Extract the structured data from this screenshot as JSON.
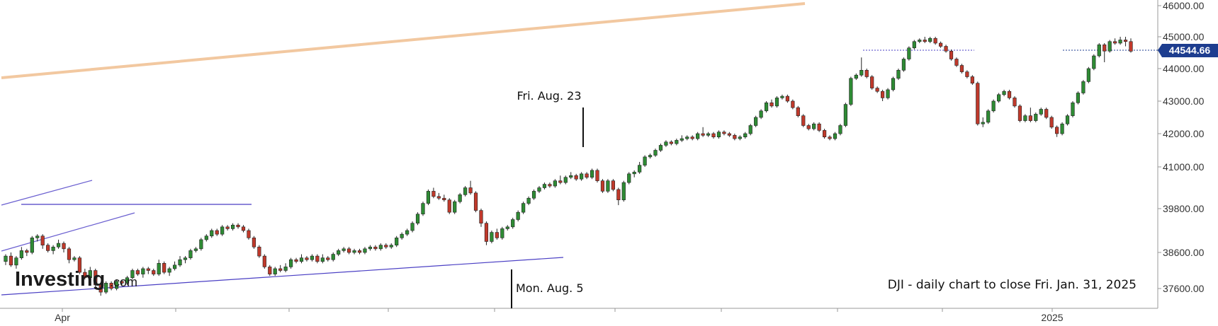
{
  "chart_data": {
    "type": "candlestick",
    "symbol": "DJI",
    "caption": "DJI - daily chart to close Fri. Jan. 31, 2025",
    "y_ticks": [
      "46000.00",
      "45000.00",
      "44000.00",
      "43000.00",
      "42000.00",
      "41000.00",
      "39800.00",
      "38600.00",
      "37600.00"
    ],
    "last_price": "44544.66",
    "x_labels": [
      "Apr",
      "2025"
    ],
    "annotations": [
      {
        "label": "Fri. Aug. 23"
      },
      {
        "label": "Mon. Aug. 5"
      }
    ],
    "candles": [
      [
        38350,
        38500,
        38250,
        38550
      ],
      [
        38500,
        38250,
        38200,
        38600
      ],
      [
        38250,
        38450,
        38150,
        38500
      ],
      [
        38450,
        38650,
        38400,
        38750
      ],
      [
        38650,
        38600,
        38500,
        38700
      ],
      [
        38600,
        39000,
        38550,
        39050
      ],
      [
        39000,
        39050,
        38900,
        39100
      ],
      [
        39050,
        38800,
        38700,
        39100
      ],
      [
        38800,
        38650,
        38600,
        38850
      ],
      [
        38650,
        38750,
        38550,
        38800
      ],
      [
        38750,
        38850,
        38700,
        38950
      ],
      [
        38850,
        38700,
        38600,
        38900
      ],
      [
        38700,
        38400,
        38300,
        38750
      ],
      [
        38400,
        38450,
        38350,
        38500
      ],
      [
        38450,
        38050,
        38000,
        38500
      ],
      [
        38050,
        37900,
        37850,
        38150
      ],
      [
        37900,
        38100,
        37850,
        38200
      ],
      [
        38100,
        37700,
        37600,
        38150
      ],
      [
        37700,
        37500,
        37400,
        37750
      ],
      [
        37500,
        37750,
        37450,
        37800
      ],
      [
        37750,
        37600,
        37550,
        37800
      ],
      [
        37600,
        37800,
        37550,
        37850
      ],
      [
        37800,
        37750,
        37700,
        37850
      ],
      [
        37750,
        37900,
        37700,
        37950
      ],
      [
        37900,
        38100,
        37850,
        38150
      ],
      [
        38100,
        38000,
        37950,
        38150
      ],
      [
        38000,
        38150,
        37900,
        38200
      ],
      [
        38150,
        38100,
        38000,
        38200
      ],
      [
        38100,
        38000,
        37950,
        38150
      ],
      [
        38000,
        38300,
        37950,
        38400
      ],
      [
        38300,
        38050,
        38000,
        38350
      ],
      [
        38050,
        38150,
        37950,
        38200
      ],
      [
        38150,
        38250,
        38100,
        38350
      ],
      [
        38250,
        38400,
        38200,
        38500
      ],
      [
        38400,
        38450,
        38300,
        38500
      ],
      [
        38450,
        38650,
        38400,
        38700
      ],
      [
        38650,
        38700,
        38600,
        38750
      ],
      [
        38700,
        38950,
        38650,
        39000
      ],
      [
        38950,
        39050,
        38900,
        39100
      ],
      [
        39050,
        39200,
        39000,
        39250
      ],
      [
        39200,
        39100,
        39050,
        39250
      ],
      [
        39100,
        39300,
        39050,
        39350
      ],
      [
        39300,
        39250,
        39200,
        39350
      ],
      [
        39250,
        39350,
        39200,
        39400
      ],
      [
        39350,
        39300,
        39250,
        39400
      ],
      [
        39300,
        39200,
        39150,
        39350
      ],
      [
        39200,
        39000,
        38950,
        39250
      ],
      [
        39000,
        38750,
        38700,
        39050
      ],
      [
        38750,
        38500,
        38450,
        38800
      ],
      [
        38500,
        38200,
        38150,
        38550
      ],
      [
        38200,
        38000,
        37950,
        38250
      ],
      [
        38000,
        38150,
        37950,
        38200
      ],
      [
        38150,
        38100,
        38050,
        38250
      ],
      [
        38100,
        38200,
        38050,
        38300
      ],
      [
        38200,
        38400,
        38150,
        38450
      ],
      [
        38400,
        38350,
        38300,
        38450
      ],
      [
        38350,
        38450,
        38300,
        38550
      ],
      [
        38450,
        38400,
        38350,
        38500
      ],
      [
        38400,
        38500,
        38350,
        38550
      ],
      [
        38500,
        38350,
        38300,
        38550
      ],
      [
        38350,
        38450,
        38300,
        38550
      ],
      [
        38450,
        38400,
        38350,
        38500
      ],
      [
        38400,
        38550,
        38350,
        38600
      ],
      [
        38550,
        38650,
        38500,
        38700
      ],
      [
        38650,
        38700,
        38600,
        38750
      ],
      [
        38700,
        38600,
        38550,
        38750
      ],
      [
        38600,
        38650,
        38550,
        38700
      ],
      [
        38650,
        38600,
        38550,
        38700
      ],
      [
        38600,
        38700,
        38550,
        38750
      ],
      [
        38700,
        38750,
        38650,
        38800
      ],
      [
        38750,
        38700,
        38650,
        38800
      ],
      [
        38700,
        38800,
        38650,
        38850
      ],
      [
        38800,
        38750,
        38700,
        38850
      ],
      [
        38750,
        38800,
        38700,
        38850
      ],
      [
        38800,
        39000,
        38750,
        39050
      ],
      [
        39000,
        39100,
        38950,
        39150
      ],
      [
        39100,
        39200,
        39050,
        39250
      ],
      [
        39200,
        39400,
        39150,
        39450
      ],
      [
        39400,
        39650,
        39350,
        39700
      ],
      [
        39650,
        39950,
        39600,
        40000
      ],
      [
        39950,
        40300,
        39900,
        40350
      ],
      [
        40300,
        40150,
        40100,
        40400
      ],
      [
        40150,
        40100,
        40050,
        40250
      ],
      [
        40100,
        40050,
        40000,
        40200
      ],
      [
        40050,
        39700,
        39650,
        40100
      ],
      [
        39700,
        40000,
        39650,
        40050
      ],
      [
        40000,
        40200,
        39950,
        40250
      ],
      [
        40200,
        40400,
        40150,
        40450
      ],
      [
        40400,
        40250,
        40200,
        40600
      ],
      [
        40250,
        39750,
        39700,
        40300
      ],
      [
        39750,
        39400,
        39300,
        39800
      ],
      [
        39400,
        38900,
        38800,
        39450
      ],
      [
        38900,
        39150,
        38850,
        39200
      ],
      [
        39150,
        39000,
        38950,
        39250
      ],
      [
        39000,
        39250,
        38950,
        39300
      ],
      [
        39250,
        39300,
        39200,
        39350
      ],
      [
        39300,
        39500,
        39250,
        39550
      ],
      [
        39500,
        39700,
        39450,
        39750
      ],
      [
        39700,
        39950,
        39650,
        40000
      ],
      [
        39950,
        40100,
        39900,
        40150
      ],
      [
        40100,
        40300,
        40050,
        40350
      ],
      [
        40300,
        40400,
        40250,
        40450
      ],
      [
        40400,
        40500,
        40350,
        40550
      ],
      [
        40500,
        40450,
        40400,
        40550
      ],
      [
        40450,
        40600,
        40400,
        40650
      ],
      [
        40600,
        40550,
        40500,
        40750
      ],
      [
        40550,
        40700,
        40500,
        40750
      ],
      [
        40700,
        40750,
        40650,
        40850
      ],
      [
        40750,
        40650,
        40600,
        40800
      ],
      [
        40650,
        40800,
        40600,
        40850
      ],
      [
        40800,
        40700,
        40650,
        40850
      ],
      [
        40700,
        40900,
        40650,
        40950
      ],
      [
        40900,
        40600,
        40550,
        40950
      ],
      [
        40600,
        40300,
        40250,
        40650
      ],
      [
        40300,
        40600,
        40250,
        40650
      ],
      [
        40600,
        40350,
        40300,
        40650
      ],
      [
        40350,
        40050,
        39900,
        40400
      ],
      [
        40050,
        40550,
        40000,
        40600
      ],
      [
        40550,
        40800,
        40500,
        40850
      ],
      [
        40800,
        40850,
        40700,
        40900
      ],
      [
        40850,
        41050,
        40800,
        41150
      ],
      [
        41050,
        41300,
        41000,
        41350
      ],
      [
        41300,
        41350,
        41250,
        41400
      ],
      [
        41350,
        41500,
        41300,
        41550
      ],
      [
        41500,
        41650,
        41450,
        41700
      ],
      [
        41650,
        41750,
        41600,
        41800
      ],
      [
        41750,
        41700,
        41650,
        41800
      ],
      [
        41700,
        41800,
        41650,
        41850
      ],
      [
        41800,
        41850,
        41750,
        41950
      ],
      [
        41850,
        41900,
        41800,
        41950
      ],
      [
        41900,
        41850,
        41800,
        41950
      ],
      [
        41850,
        42000,
        41800,
        42050
      ],
      [
        42000,
        41950,
        41900,
        42200
      ],
      [
        41950,
        42000,
        41900,
        42050
      ],
      [
        42000,
        41900,
        41850,
        42050
      ],
      [
        41900,
        42050,
        41850,
        42100
      ],
      [
        42050,
        42000,
        41950,
        42100
      ],
      [
        42000,
        41950,
        41900,
        42050
      ],
      [
        41950,
        41850,
        41800,
        42000
      ],
      [
        41850,
        41900,
        41800,
        41950
      ],
      [
        41900,
        42000,
        41850,
        42050
      ],
      [
        42000,
        42250,
        41950,
        42300
      ],
      [
        42250,
        42500,
        42200,
        42550
      ],
      [
        42500,
        42700,
        42450,
        42750
      ],
      [
        42700,
        42950,
        42650,
        43000
      ],
      [
        42950,
        42850,
        42800,
        43050
      ],
      [
        42850,
        43100,
        42800,
        43150
      ],
      [
        43100,
        43150,
        43050,
        43200
      ],
      [
        43150,
        43000,
        42950,
        43200
      ],
      [
        43000,
        42800,
        42750,
        43050
      ],
      [
        42800,
        42550,
        42500,
        42850
      ],
      [
        42550,
        42250,
        42200,
        42600
      ],
      [
        42250,
        42150,
        42100,
        42300
      ],
      [
        42150,
        42300,
        42100,
        42350
      ],
      [
        42300,
        42100,
        42050,
        42350
      ],
      [
        42100,
        41900,
        41850,
        42150
      ],
      [
        41900,
        41850,
        41800,
        41950
      ],
      [
        41850,
        42000,
        41800,
        42050
      ],
      [
        42000,
        42250,
        41950,
        42300
      ],
      [
        42250,
        42900,
        42200,
        42950
      ],
      [
        42900,
        43700,
        42850,
        43750
      ],
      [
        43700,
        43800,
        43650,
        43850
      ],
      [
        43800,
        43950,
        43750,
        44350
      ],
      [
        43950,
        43750,
        43700,
        44000
      ],
      [
        43750,
        43400,
        43350,
        43800
      ],
      [
        43400,
        43300,
        43250,
        43450
      ],
      [
        43300,
        43100,
        43000,
        43350
      ],
      [
        43100,
        43350,
        43050,
        43400
      ],
      [
        43350,
        43700,
        43300,
        43750
      ],
      [
        43700,
        43950,
        43650,
        44000
      ],
      [
        43950,
        44300,
        43900,
        44350
      ],
      [
        44300,
        44650,
        44250,
        44700
      ],
      [
        44650,
        44850,
        44600,
        44900
      ],
      [
        44850,
        44900,
        44800,
        44950
      ],
      [
        44900,
        44850,
        44800,
        45000
      ],
      [
        44850,
        44950,
        44800,
        45000
      ],
      [
        44950,
        44800,
        44750,
        45000
      ],
      [
        44800,
        44700,
        44650,
        44850
      ],
      [
        44700,
        44550,
        44500,
        44750
      ],
      [
        44550,
        44300,
        44250,
        44600
      ],
      [
        44300,
        44100,
        44050,
        44350
      ],
      [
        44100,
        43900,
        43850,
        44150
      ],
      [
        43900,
        43750,
        43700,
        43950
      ],
      [
        43750,
        43550,
        43500,
        43800
      ],
      [
        43550,
        42300,
        42250,
        43600
      ],
      [
        42300,
        42350,
        42200,
        42500
      ],
      [
        42350,
        42700,
        42300,
        42750
      ],
      [
        42700,
        43000,
        42650,
        43050
      ],
      [
        43000,
        43200,
        42950,
        43250
      ],
      [
        43200,
        43300,
        43150,
        43350
      ],
      [
        43300,
        43100,
        43050,
        43350
      ],
      [
        43100,
        42850,
        42800,
        43150
      ],
      [
        42850,
        42400,
        42350,
        42900
      ],
      [
        42400,
        42550,
        42350,
        42600
      ],
      [
        42550,
        42400,
        42350,
        42800
      ],
      [
        42400,
        42600,
        42350,
        42650
      ],
      [
        42600,
        42750,
        42550,
        42800
      ],
      [
        42750,
        42500,
        42450,
        42800
      ],
      [
        42500,
        42200,
        42150,
        42550
      ],
      [
        42200,
        42000,
        41900,
        42250
      ],
      [
        42000,
        42300,
        41950,
        42350
      ],
      [
        42300,
        42550,
        42250,
        42600
      ],
      [
        42550,
        42950,
        42500,
        43000
      ],
      [
        42950,
        43250,
        42900,
        43300
      ],
      [
        43250,
        43600,
        43200,
        43650
      ],
      [
        43600,
        44000,
        43550,
        44050
      ],
      [
        44000,
        44400,
        43950,
        44450
      ],
      [
        44400,
        44750,
        44350,
        44800
      ],
      [
        44750,
        44550,
        44200,
        44800
      ],
      [
        44550,
        44850,
        44500,
        44900
      ],
      [
        44850,
        44800,
        44750,
        44950
      ],
      [
        44800,
        44900,
        44750,
        45000
      ],
      [
        44900,
        44850,
        44700,
        45000
      ],
      [
        44850,
        44545,
        44500,
        44950
      ]
    ]
  }
}
